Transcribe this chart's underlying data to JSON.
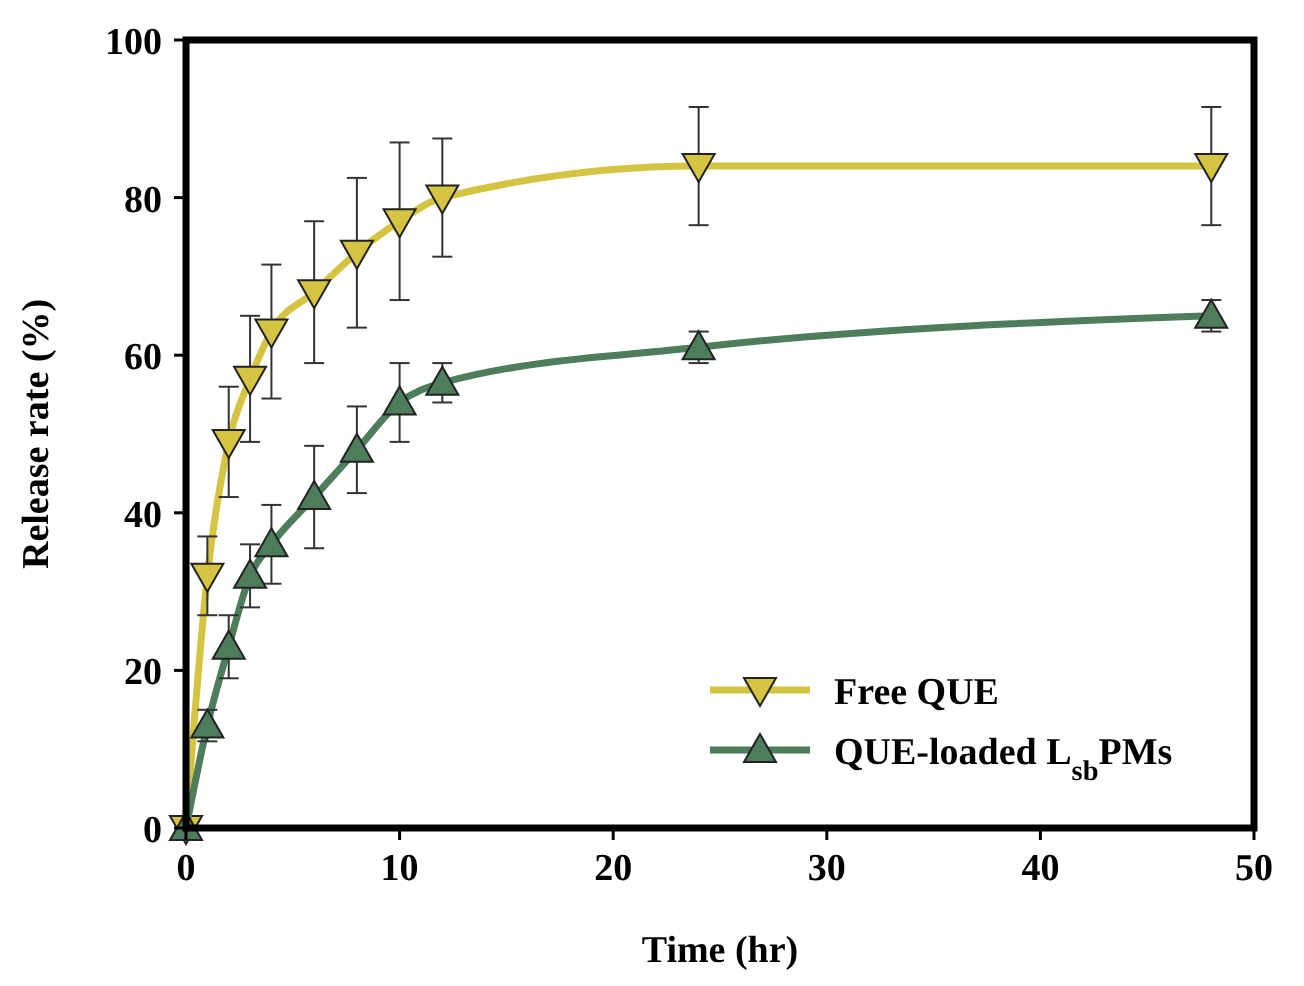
{
  "chart_data": {
    "type": "line",
    "xlabel": "Time (hr)",
    "ylabel": "Release rate (%)",
    "x": [
      0,
      1,
      2,
      3,
      4,
      6,
      8,
      10,
      12,
      24,
      48
    ],
    "xlim": [
      0,
      50
    ],
    "xticks": [
      0,
      10,
      20,
      30,
      40,
      50
    ],
    "ylim": [
      0,
      100
    ],
    "yticks": [
      0,
      20,
      40,
      60,
      80,
      100
    ],
    "grid": false,
    "legend": "bottom right",
    "line_style": "solid",
    "series": [
      {
        "name": "Free QUE",
        "color": "#d4c441",
        "marker": "triangle-down",
        "values": [
          0,
          32,
          49,
          57,
          63,
          68,
          73,
          77,
          80,
          84,
          84
        ],
        "errors": [
          0,
          5,
          7,
          8,
          8.5,
          9,
          9.5,
          10,
          7.5,
          7.5,
          7.5
        ]
      },
      {
        "name": "QUE-loaded L$_{sb}$PMs",
        "color": "#4e7d5c",
        "marker": "triangle",
        "values": [
          0,
          13,
          23,
          32,
          36,
          42,
          48,
          54,
          56.5,
          61,
          65
        ],
        "errors": [
          0,
          2,
          4,
          4,
          5,
          6.5,
          5.5,
          5,
          2.5,
          2,
          2
        ]
      }
    ]
  }
}
